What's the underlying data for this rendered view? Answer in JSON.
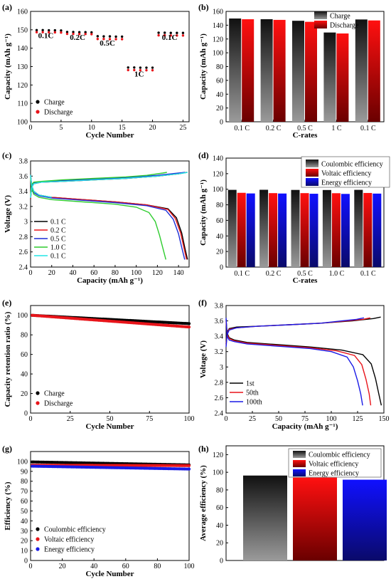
{
  "figure": {
    "background": "#ffffff"
  },
  "chart_data": [
    {
      "id": "a",
      "panel_label": "(a)",
      "type": "scatter",
      "xlabel": "Cycle Number",
      "ylabel": "Capacity (mAh g⁻¹)",
      "xlim": [
        0,
        26
      ],
      "ylim": [
        100,
        160
      ],
      "xticks": [
        0,
        5,
        10,
        15,
        20,
        25
      ],
      "yticks": [
        100,
        110,
        120,
        130,
        140,
        150,
        160
      ],
      "series": [
        {
          "name": "Charge",
          "color": "#000000",
          "x": [
            1,
            2,
            3,
            4,
            5,
            6,
            7,
            8,
            9,
            10,
            11,
            12,
            13,
            14,
            15,
            16,
            17,
            18,
            19,
            20,
            21,
            22,
            23,
            24,
            25
          ],
          "y": [
            149.8,
            149.8,
            149.7,
            149.7,
            149.6,
            148.8,
            148.8,
            148.7,
            148.7,
            148.6,
            146.5,
            146.4,
            146.4,
            146.3,
            146.3,
            129.5,
            129.5,
            129.4,
            129.4,
            129.4,
            148.4,
            148.4,
            148.3,
            148.3,
            148.3
          ]
        },
        {
          "name": "Discharge",
          "color": "#e8141a",
          "x": [
            1,
            2,
            3,
            4,
            5,
            6,
            7,
            8,
            9,
            10,
            11,
            12,
            13,
            14,
            15,
            16,
            17,
            18,
            19,
            20,
            21,
            22,
            23,
            24,
            25
          ],
          "y": [
            148.7,
            148.7,
            148.6,
            148.6,
            148.5,
            147.8,
            147.8,
            147.7,
            147.7,
            147.6,
            145.0,
            145.0,
            144.9,
            144.9,
            144.9,
            128.1,
            128.1,
            128.0,
            128.0,
            128.0,
            147.0,
            147.0,
            146.9,
            146.9,
            146.9
          ]
        }
      ],
      "annotations": [
        {
          "text": "0.1C",
          "x": 2.5,
          "y": 145.5
        },
        {
          "text": "0.2C",
          "x": 7.7,
          "y": 144.5
        },
        {
          "text": "0.5C",
          "x": 12.6,
          "y": 141.5
        },
        {
          "text": "1C",
          "x": 17.8,
          "y": 124.5
        },
        {
          "text": "0.1C",
          "x": 22.8,
          "y": 144.5
        }
      ],
      "legend_position": "bottom-left"
    },
    {
      "id": "b",
      "panel_label": "(b)",
      "type": "bar",
      "xlabel": "C-rates",
      "ylabel": "Capacity (mAh g⁻¹)",
      "categories": [
        "0.1 C",
        "0.2 C",
        "0.5 C",
        "1 C",
        "0.1 C"
      ],
      "ylim": [
        0,
        160
      ],
      "yticks": [
        0,
        20,
        40,
        60,
        80,
        100,
        120,
        140,
        160
      ],
      "series": [
        {
          "name": "Charge",
          "color": "#000000",
          "values": [
            149.7,
            148.7,
            146.4,
            129.4,
            148.3
          ]
        },
        {
          "name": "Discharge",
          "color": "#e8141a",
          "values": [
            148.6,
            147.7,
            144.9,
            128.0,
            146.9
          ]
        }
      ],
      "legend_position": "top-right"
    },
    {
      "id": "c",
      "panel_label": "(c)",
      "type": "line",
      "xlabel": "Capacity (mAh g⁻¹)",
      "ylabel": "Voltage (V)",
      "xlim": [
        0,
        150
      ],
      "ylim": [
        2.4,
        3.8
      ],
      "xticks": [
        0,
        20,
        40,
        60,
        80,
        100,
        120,
        140
      ],
      "yticks": [
        2.4,
        2.6,
        2.8,
        3.0,
        3.2,
        3.4,
        3.6,
        3.8
      ],
      "series": [
        {
          "name": "0.1 C",
          "color": "#000000",
          "charge": {
            "x": [
              0,
              1,
              3,
              10,
              30,
              60,
              90,
              120,
              140,
              148
            ],
            "y": [
              3.3,
              3.45,
              3.5,
              3.52,
              3.53,
              3.55,
              3.57,
              3.6,
              3.63,
              3.65
            ]
          },
          "discharge": {
            "x": [
              0,
              1,
              3,
              8,
              20,
              50,
              80,
              110,
              130,
              138,
              143,
              146,
              148.5
            ],
            "y": [
              3.62,
              3.48,
              3.4,
              3.35,
              3.32,
              3.29,
              3.26,
              3.22,
              3.17,
              3.05,
              2.85,
              2.65,
              2.5
            ]
          }
        },
        {
          "name": "0.2 C",
          "color": "#e8141a",
          "charge": {
            "x": [
              0,
              1,
              3,
              10,
              30,
              60,
              90,
              120,
              140,
              147
            ],
            "y": [
              3.3,
              3.46,
              3.5,
              3.52,
              3.53,
              3.55,
              3.57,
              3.6,
              3.63,
              3.65
            ]
          },
          "discharge": {
            "x": [
              0,
              1,
              3,
              8,
              20,
              50,
              80,
              110,
              130,
              137,
              142,
              145,
              147.6
            ],
            "y": [
              3.62,
              3.48,
              3.4,
              3.35,
              3.32,
              3.29,
              3.26,
              3.22,
              3.16,
              3.04,
              2.85,
              2.66,
              2.5
            ]
          }
        },
        {
          "name": "0.5 C",
          "color": "#1f2dd6",
          "charge": {
            "x": [
              0,
              1,
              3,
              10,
              30,
              60,
              90,
              120,
              140,
              146
            ],
            "y": [
              3.32,
              3.47,
              3.51,
              3.52,
              3.54,
              3.56,
              3.58,
              3.61,
              3.64,
              3.65
            ]
          },
          "discharge": {
            "x": [
              0,
              1,
              3,
              8,
              20,
              50,
              80,
              110,
              128,
              135,
              140,
              143,
              145.8
            ],
            "y": [
              3.6,
              3.46,
              3.38,
              3.34,
              3.31,
              3.28,
              3.25,
              3.21,
              3.15,
              3.03,
              2.84,
              2.66,
              2.5
            ]
          }
        },
        {
          "name": "1.0 C",
          "color": "#2ecc2e",
          "charge": {
            "x": [
              0,
              1,
              3,
              10,
              30,
              60,
              90,
              110,
              125,
              129
            ],
            "y": [
              3.34,
              3.49,
              3.52,
              3.53,
              3.55,
              3.57,
              3.59,
              3.61,
              3.64,
              3.65
            ]
          },
          "discharge": {
            "x": [
              0,
              1,
              3,
              8,
              20,
              50,
              80,
              100,
              112,
              118,
              122,
              125,
              128
            ],
            "y": [
              3.58,
              3.44,
              3.36,
              3.32,
              3.29,
              3.26,
              3.23,
              3.19,
              3.12,
              3.0,
              2.82,
              2.66,
              2.5
            ]
          }
        },
        {
          "name": "0.1 C",
          "color": "#22e6e6",
          "charge": {
            "x": [
              0,
              1,
              3,
              10,
              30,
              60,
              90,
              120,
              140,
              148.5
            ],
            "y": [
              3.31,
              3.45,
              3.5,
              3.52,
              3.53,
              3.55,
              3.57,
              3.6,
              3.63,
              3.65
            ]
          },
          "discharge": {
            "x": [
              0,
              1,
              3,
              8,
              20
            ],
            "y": [
              3.62,
              3.48,
              3.4,
              3.35,
              3.32
            ]
          }
        }
      ],
      "legend_position": "bottom-left"
    },
    {
      "id": "d",
      "panel_label": "(d)",
      "type": "bar",
      "xlabel": "C-rates",
      "ylabel": "Capacity (mAh g⁻¹)",
      "categories": [
        "0.1 C",
        "0.2 C",
        "0.5 C",
        "1.0 C",
        "0.1 C"
      ],
      "ylim": [
        0,
        140
      ],
      "yticks": [
        0,
        20,
        40,
        60,
        80,
        100,
        120,
        140
      ],
      "series": [
        {
          "name": "Coulombic efficiency",
          "color": "#000000",
          "values": [
            99.2,
            99.3,
            99.1,
            99.0,
            99.2
          ]
        },
        {
          "name": "Voltaic efficiency",
          "color": "#e8141a",
          "values": [
            95.4,
            95.0,
            95.0,
            94.9,
            95.2
          ]
        },
        {
          "name": "Energy efficiency",
          "color": "#1a1ae6",
          "values": [
            94.6,
            94.5,
            94.2,
            94.0,
            94.4
          ]
        }
      ],
      "legend_position": "top-right"
    },
    {
      "id": "e",
      "panel_label": "(e)",
      "type": "scatter",
      "xlabel": "Cycle Number",
      "ylabel": "Capacity retention ratio (%)",
      "xlim": [
        0,
        100
      ],
      "ylim": [
        0,
        110
      ],
      "xticks": [
        0,
        25,
        50,
        75,
        100
      ],
      "yticks": [
        0,
        20,
        40,
        60,
        80,
        100
      ],
      "series": [
        {
          "name": "Charge",
          "color": "#000000",
          "start": 100,
          "end": 91.5,
          "n": 100
        },
        {
          "name": "Discharge",
          "color": "#e8141a",
          "start": 100,
          "end": 88.0,
          "n": 100
        }
      ],
      "legend_position": "bottom-left"
    },
    {
      "id": "f",
      "panel_label": "(f)",
      "type": "line",
      "xlabel": "Capacity (mAh g⁻¹)",
      "ylabel": "Voltage (V)",
      "xlim": [
        0,
        150
      ],
      "ylim": [
        2.4,
        3.8
      ],
      "xticks": [
        0,
        25,
        50,
        75,
        100,
        125,
        150
      ],
      "yticks": [
        2.4,
        2.6,
        2.8,
        3.0,
        3.2,
        3.4,
        3.6,
        3.8
      ],
      "series": [
        {
          "name": "1st",
          "color": "#000000",
          "charge": {
            "x": [
              0,
              1,
              3,
              10,
              30,
              60,
              90,
              120,
              140,
              147
            ],
            "y": [
              3.3,
              3.45,
              3.5,
              3.52,
              3.53,
              3.55,
              3.57,
              3.6,
              3.63,
              3.65
            ]
          },
          "discharge": {
            "x": [
              0,
              1,
              3,
              8,
              20,
              50,
              80,
              110,
              130,
              138,
              142,
              145,
              147.6
            ],
            "y": [
              3.62,
              3.44,
              3.38,
              3.35,
              3.32,
              3.29,
              3.26,
              3.22,
              3.16,
              3.04,
              2.85,
              2.66,
              2.5
            ]
          }
        },
        {
          "name": "50th",
          "color": "#e8141a",
          "charge": {
            "x": [
              0,
              1,
              3,
              10,
              30,
              60,
              90,
              115,
              130,
              137
            ],
            "y": [
              3.28,
              3.43,
              3.49,
              3.51,
              3.53,
              3.55,
              3.57,
              3.6,
              3.62,
              3.64
            ]
          },
          "discharge": {
            "x": [
              0,
              1,
              3,
              8,
              20,
              50,
              80,
              105,
              122,
              129,
              133,
              136,
              137.5
            ],
            "y": [
              3.6,
              3.42,
              3.37,
              3.34,
              3.31,
              3.28,
              3.25,
              3.21,
              3.15,
              3.03,
              2.84,
              2.65,
              2.5
            ]
          }
        },
        {
          "name": "100th",
          "color": "#1a1ae6",
          "charge": {
            "x": [
              0,
              1,
              3,
              10,
              30,
              60,
              90,
              110,
              124,
              131
            ],
            "y": [
              3.26,
              3.42,
              3.48,
              3.51,
              3.53,
              3.55,
              3.57,
              3.6,
              3.62,
              3.64
            ]
          },
          "discharge": {
            "x": [
              0,
              1,
              3,
              8,
              20,
              50,
              80,
              100,
              115,
              121,
              125,
              128,
              129.8
            ],
            "y": [
              3.64,
              3.4,
              3.35,
              3.33,
              3.3,
              3.27,
              3.24,
              3.2,
              3.13,
              3.0,
              2.82,
              2.65,
              2.5
            ]
          }
        }
      ],
      "legend_position": "bottom-left"
    },
    {
      "id": "g",
      "panel_label": "(g)",
      "type": "scatter",
      "xlabel": "Cycle Number",
      "ylabel": "Efficiency (%)",
      "xlim": [
        0,
        100
      ],
      "ylim": [
        0,
        110
      ],
      "xticks": [
        0,
        20,
        40,
        60,
        80,
        100
      ],
      "yticks": [
        0,
        10,
        20,
        30,
        40,
        50,
        60,
        70,
        80,
        90,
        100
      ],
      "series": [
        {
          "name": "Coulombic efficiency",
          "color": "#000000",
          "start": 99.5,
          "end": 96.5,
          "n": 100
        },
        {
          "name": "Voltaic efficiency",
          "color": "#e8141a",
          "start": 96.2,
          "end": 95.8,
          "n": 100
        },
        {
          "name": "Energy efficiency",
          "color": "#1a1ae6",
          "start": 95.2,
          "end": 92.3,
          "n": 100
        }
      ],
      "legend_position": "bottom-left"
    },
    {
      "id": "h",
      "panel_label": "(h)",
      "type": "bar",
      "xlabel": "",
      "ylabel": "Average efficiency (%)",
      "categories": [
        "Coulombic efficiency",
        "Voltaic efficiency",
        "Energy efficiency"
      ],
      "ylim": [
        0,
        130
      ],
      "yticks": [
        0,
        20,
        40,
        60,
        80,
        100,
        120
      ],
      "series": [
        {
          "name": "Average efficiency",
          "color": "#000000",
          "values": [
            96.3,
            94.0,
            91.6
          ]
        }
      ],
      "bar_colors": [
        "#000000",
        "#e8141a",
        "#1a1ae6"
      ],
      "legend_position": "top-right"
    }
  ]
}
